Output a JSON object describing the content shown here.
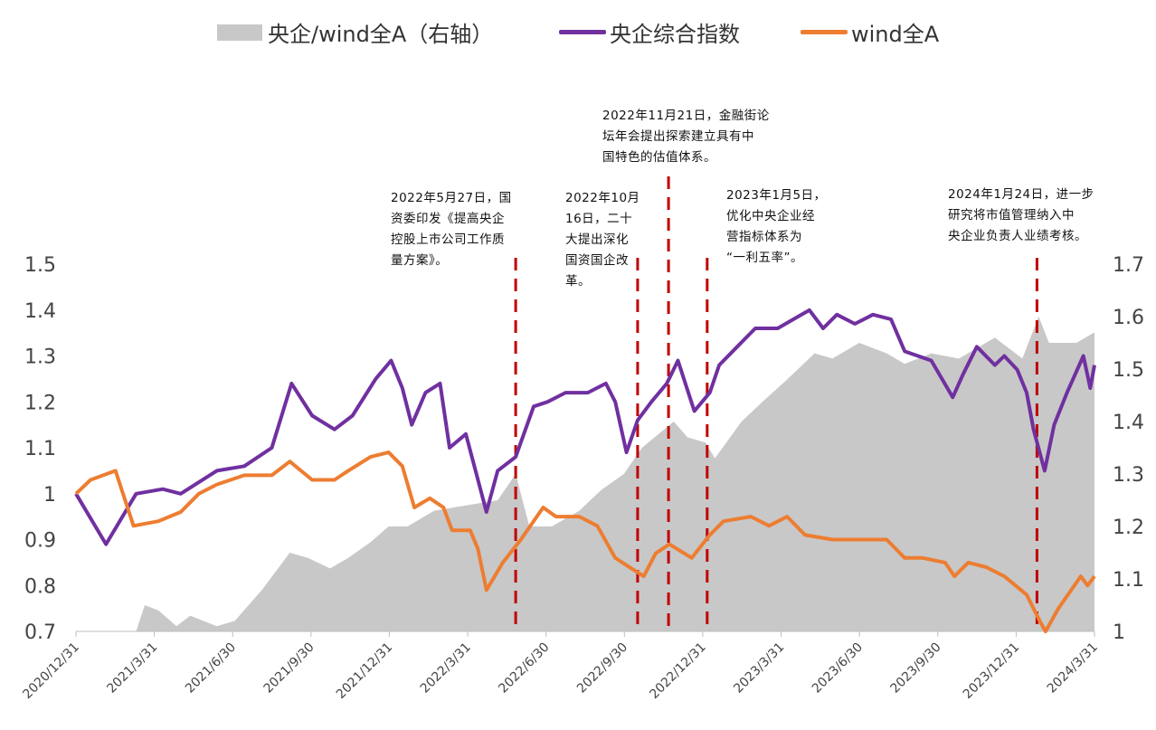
{
  "legend": [
    {
      "label": "央企/wind全A（右轴）",
      "type": "area",
      "color": "#c8c8c8"
    },
    {
      "label": "央企综合指数",
      "type": "line",
      "color": "#7030a0"
    },
    {
      "label": "wind全A",
      "type": "line",
      "color": "#ed7d31"
    }
  ],
  "annotations": [
    {
      "date": "2022-05-27",
      "lines": [
        "2022年5月27日，国",
        "资委印发《提高央企",
        "控股上市公司工作质",
        "量方案》。"
      ]
    },
    {
      "date": "2022-10-16",
      "lines": [
        "2022年10月",
        "16日，二十",
        "大提出深化",
        "国资国企改",
        "革。"
      ]
    },
    {
      "date": "2022-11-21",
      "lines": [
        "2022年11月21日，金融街论",
        "坛年会提出探索建立具有中",
        "国特色的估值体系。"
      ]
    },
    {
      "date": "2023-01-05",
      "lines": [
        "2023年1月5日，",
        "优化中央企业经",
        "营指标体系为",
        "“一利五率”。"
      ]
    },
    {
      "date": "2024-01-24",
      "lines": [
        "2024年1月24日，进一步",
        "研究将市值管理纳入中",
        "央企业负责人业绩考核。"
      ]
    }
  ],
  "chart_data": {
    "type": "line",
    "title": "",
    "xlabel": "",
    "ylabel": "",
    "xlim": [
      "2020-12-31",
      "2024-03-31"
    ],
    "x_ticks": [
      "2020/12/31",
      "2021/3/31",
      "2021/6/30",
      "2021/9/30",
      "2021/12/31",
      "2022/3/31",
      "2022/6/30",
      "2022/9/30",
      "2022/12/31",
      "2023/3/31",
      "2023/6/30",
      "2023/9/30",
      "2023/12/31",
      "2024/3/31"
    ],
    "y_left": {
      "lim": [
        0.7,
        1.5
      ],
      "ticks": [
        "0.7",
        "0.8",
        "0.9",
        "1",
        "1.1",
        "1.2",
        "1.3",
        "1.4",
        "1.5"
      ]
    },
    "y_right": {
      "lim": [
        1.0,
        1.7
      ],
      "ticks": [
        "1",
        "1.1",
        "1.2",
        "1.3",
        "1.4",
        "1.5",
        "1.6",
        "1.7"
      ]
    },
    "grid": false,
    "legend_position": "top",
    "event_line_color": "#c00000",
    "series": [
      {
        "name": "央企/wind全A（右轴）",
        "type": "area",
        "axis": "right",
        "color": "#c8c8c8",
        "points": [
          [
            "2020-12-31",
            1.0
          ],
          [
            "2021-03-11",
            1.0
          ],
          [
            "2021-03-21",
            1.05
          ],
          [
            "2021-04-06",
            1.04
          ],
          [
            "2021-04-27",
            1.01
          ],
          [
            "2021-05-13",
            1.03
          ],
          [
            "2021-06-13",
            1.01
          ],
          [
            "2021-07-04",
            1.02
          ],
          [
            "2021-08-05",
            1.08
          ],
          [
            "2021-09-06",
            1.15
          ],
          [
            "2021-09-27",
            1.14
          ],
          [
            "2021-10-23",
            1.12
          ],
          [
            "2021-11-13",
            1.14
          ],
          [
            "2021-12-09",
            1.17
          ],
          [
            "2021-12-30",
            1.2
          ],
          [
            "2022-01-21",
            1.2
          ],
          [
            "2022-02-21",
            1.23
          ],
          [
            "2022-03-30",
            1.24
          ],
          [
            "2022-05-06",
            1.25
          ],
          [
            "2022-05-27",
            1.3
          ],
          [
            "2022-06-12",
            1.2
          ],
          [
            "2022-07-08",
            1.2
          ],
          [
            "2022-08-09",
            1.23
          ],
          [
            "2022-09-04",
            1.27
          ],
          [
            "2022-09-30",
            1.3
          ],
          [
            "2022-10-21",
            1.35
          ],
          [
            "2022-11-27",
            1.4
          ],
          [
            "2022-12-13",
            1.37
          ],
          [
            "2023-01-03",
            1.36
          ],
          [
            "2023-01-14",
            1.33
          ],
          [
            "2023-02-14",
            1.4
          ],
          [
            "2023-03-12",
            1.44
          ],
          [
            "2023-04-08",
            1.48
          ],
          [
            "2023-05-10",
            1.53
          ],
          [
            "2023-05-31",
            1.52
          ],
          [
            "2023-07-01",
            1.55
          ],
          [
            "2023-08-02",
            1.53
          ],
          [
            "2023-08-23",
            1.51
          ],
          [
            "2023-09-23",
            1.53
          ],
          [
            "2023-10-25",
            1.52
          ],
          [
            "2023-12-06",
            1.56
          ],
          [
            "2024-01-07",
            1.52
          ],
          [
            "2024-01-26",
            1.6
          ],
          [
            "2024-02-07",
            1.55
          ],
          [
            "2024-03-10",
            1.55
          ],
          [
            "2024-03-31",
            1.57
          ]
        ]
      },
      {
        "name": "央企综合指数",
        "type": "line",
        "axis": "left",
        "color": "#7030a0",
        "points": [
          [
            "2020-12-31",
            1.0
          ],
          [
            "2021-02-04",
            0.89
          ],
          [
            "2021-03-11",
            1.0
          ],
          [
            "2021-04-11",
            1.01
          ],
          [
            "2021-05-02",
            1.0
          ],
          [
            "2021-06-13",
            1.05
          ],
          [
            "2021-07-15",
            1.06
          ],
          [
            "2021-08-16",
            1.1
          ],
          [
            "2021-09-08",
            1.24
          ],
          [
            "2021-10-02",
            1.17
          ],
          [
            "2021-10-28",
            1.14
          ],
          [
            "2021-11-18",
            1.17
          ],
          [
            "2021-12-15",
            1.25
          ],
          [
            "2022-01-02",
            1.29
          ],
          [
            "2022-01-15",
            1.23
          ],
          [
            "2022-01-26",
            1.15
          ],
          [
            "2022-02-11",
            1.22
          ],
          [
            "2022-02-28",
            1.24
          ],
          [
            "2022-03-11",
            1.1
          ],
          [
            "2022-03-30",
            1.13
          ],
          [
            "2022-04-23",
            0.96
          ],
          [
            "2022-05-06",
            1.05
          ],
          [
            "2022-05-27",
            1.08
          ],
          [
            "2022-06-17",
            1.19
          ],
          [
            "2022-07-03",
            1.2
          ],
          [
            "2022-07-24",
            1.22
          ],
          [
            "2022-08-19",
            1.22
          ],
          [
            "2022-09-09",
            1.24
          ],
          [
            "2022-09-20",
            1.2
          ],
          [
            "2022-10-03",
            1.09
          ],
          [
            "2022-10-16",
            1.16
          ],
          [
            "2022-11-01",
            1.2
          ],
          [
            "2022-11-19",
            1.24
          ],
          [
            "2022-12-02",
            1.29
          ],
          [
            "2022-12-21",
            1.18
          ],
          [
            "2023-01-08",
            1.22
          ],
          [
            "2023-01-19",
            1.28
          ],
          [
            "2023-02-09",
            1.32
          ],
          [
            "2023-03-02",
            1.36
          ],
          [
            "2023-03-28",
            1.36
          ],
          [
            "2023-05-04",
            1.4
          ],
          [
            "2023-05-20",
            1.36
          ],
          [
            "2023-06-05",
            1.39
          ],
          [
            "2023-06-26",
            1.37
          ],
          [
            "2023-07-17",
            1.39
          ],
          [
            "2023-08-07",
            1.38
          ],
          [
            "2023-08-23",
            1.31
          ],
          [
            "2023-09-23",
            1.29
          ],
          [
            "2023-10-18",
            1.21
          ],
          [
            "2023-10-30",
            1.26
          ],
          [
            "2023-11-15",
            1.32
          ],
          [
            "2023-12-06",
            1.28
          ],
          [
            "2023-12-17",
            1.3
          ],
          [
            "2024-01-01",
            1.27
          ],
          [
            "2024-01-12",
            1.22
          ],
          [
            "2024-01-20",
            1.14
          ],
          [
            "2024-02-02",
            1.05
          ],
          [
            "2024-02-13",
            1.15
          ],
          [
            "2024-02-28",
            1.22
          ],
          [
            "2024-03-18",
            1.3
          ],
          [
            "2024-03-26",
            1.23
          ],
          [
            "2024-03-31",
            1.28
          ]
        ]
      },
      {
        "name": "wind全A",
        "type": "line",
        "axis": "left",
        "color": "#ed7d31",
        "points": [
          [
            "2020-12-31",
            1.0
          ],
          [
            "2021-01-17",
            1.03
          ],
          [
            "2021-02-15",
            1.05
          ],
          [
            "2021-03-08",
            0.93
          ],
          [
            "2021-04-06",
            0.94
          ],
          [
            "2021-05-02",
            0.96
          ],
          [
            "2021-05-23",
            1.0
          ],
          [
            "2021-06-13",
            1.02
          ],
          [
            "2021-07-15",
            1.04
          ],
          [
            "2021-08-16",
            1.04
          ],
          [
            "2021-09-06",
            1.07
          ],
          [
            "2021-10-02",
            1.03
          ],
          [
            "2021-10-28",
            1.03
          ],
          [
            "2021-11-13",
            1.05
          ],
          [
            "2021-12-09",
            1.08
          ],
          [
            "2021-12-30",
            1.09
          ],
          [
            "2022-01-15",
            1.06
          ],
          [
            "2022-01-29",
            0.97
          ],
          [
            "2022-02-16",
            0.99
          ],
          [
            "2022-03-04",
            0.97
          ],
          [
            "2022-03-14",
            0.92
          ],
          [
            "2022-04-04",
            0.92
          ],
          [
            "2022-04-13",
            0.88
          ],
          [
            "2022-04-23",
            0.79
          ],
          [
            "2022-05-12",
            0.85
          ],
          [
            "2022-06-02",
            0.9
          ],
          [
            "2022-06-28",
            0.97
          ],
          [
            "2022-07-13",
            0.95
          ],
          [
            "2022-08-09",
            0.95
          ],
          [
            "2022-08-30",
            0.93
          ],
          [
            "2022-09-20",
            0.86
          ],
          [
            "2022-10-23",
            0.82
          ],
          [
            "2022-11-06",
            0.87
          ],
          [
            "2022-11-22",
            0.89
          ],
          [
            "2022-12-18",
            0.86
          ],
          [
            "2023-01-08",
            0.91
          ],
          [
            "2023-01-24",
            0.94
          ],
          [
            "2023-02-25",
            0.95
          ],
          [
            "2023-03-18",
            0.93
          ],
          [
            "2023-04-08",
            0.95
          ],
          [
            "2023-04-29",
            0.91
          ],
          [
            "2023-05-31",
            0.9
          ],
          [
            "2023-07-01",
            0.9
          ],
          [
            "2023-08-02",
            0.9
          ],
          [
            "2023-08-23",
            0.86
          ],
          [
            "2023-09-13",
            0.86
          ],
          [
            "2023-10-09",
            0.85
          ],
          [
            "2023-10-20",
            0.82
          ],
          [
            "2023-11-05",
            0.85
          ],
          [
            "2023-11-26",
            0.84
          ],
          [
            "2023-12-17",
            0.82
          ],
          [
            "2024-01-12",
            0.78
          ],
          [
            "2024-01-28",
            0.72
          ],
          [
            "2024-02-03",
            0.7
          ],
          [
            "2024-02-18",
            0.75
          ],
          [
            "2024-03-15",
            0.82
          ],
          [
            "2024-03-23",
            0.8
          ],
          [
            "2024-03-31",
            0.82
          ]
        ]
      }
    ]
  }
}
